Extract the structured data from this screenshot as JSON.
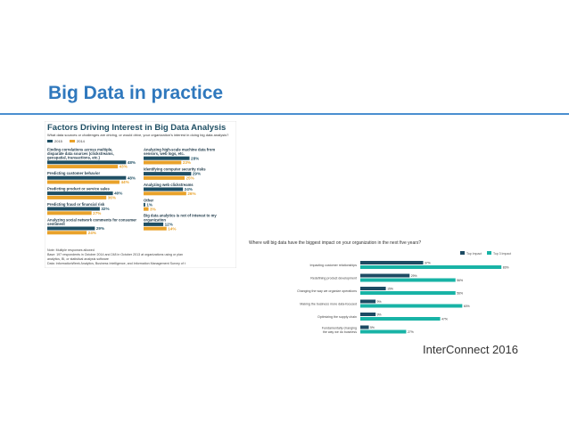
{
  "slide": {
    "title": "Big Data in practice",
    "footer": "InterConnect 2016"
  },
  "colors": {
    "title": "#2f78bd",
    "rule": "#4a8fd0",
    "series2015": "#1f4f64",
    "series2014": "#e9a22a",
    "topImpact": "#1d4b63",
    "top3Impact": "#18b3a6"
  },
  "chart_data": [
    {
      "type": "bar",
      "title": "Factors Driving Interest in Big Data Analysis",
      "subtitle": "What data sources or challenges are driving, or would drive, your organization's interest in doing big data analysis?",
      "series": [
        {
          "name": "2015",
          "values": [
            48,
            48,
            40,
            32,
            29,
            28,
            29,
            24,
            1,
            12
          ]
        },
        {
          "name": "2014",
          "values": [
            43,
            44,
            36,
            27,
            24,
            23,
            25,
            26,
            3,
            14
          ]
        }
      ],
      "categories": [
        "Finding correlations across multiple, disparate data sources (clickstreams, geospatial, transactions, etc.)",
        "Predicting customer behavior",
        "Predicting product or service sales",
        "Predicting fraud or financial risk",
        "Analyzing social network comments for consumer sentiment",
        "Analyzing high-scale machine data from sensors, web logs, etc.",
        "Identifying computer security risks",
        "Analyzing web clickstreams",
        "Other",
        "Big data analytics is not of interest to my organization"
      ],
      "notes": [
        "Note: Multiple responses allowed",
        "Base: 197 respondents in October 2014 and 248 in October 2013 at organizations using or plan",
        "analytics, BI, or statistical analysis software",
        "Data: InformationWeek Analytics, Business Intelligence, and Information Management Survey of t"
      ]
    },
    {
      "type": "bar",
      "title": "Where will big data have the biggest impact on your organization in the next five years?",
      "legend": [
        "Top Impact",
        "Top 3 Impact"
      ],
      "categories": [
        "Impacting customer relationships",
        "Redefining product development",
        "Changing the way we organize operations",
        "Making the business more data-focused",
        "Optimizing the supply chain",
        "Fundamentally changing the way we do business"
      ],
      "series": [
        {
          "name": "Top Impact",
          "values": [
            37,
            29,
            15,
            9,
            9,
            5
          ]
        },
        {
          "name": "Top 3 Impact",
          "values": [
            83,
            56,
            56,
            60,
            47,
            27
          ]
        }
      ],
      "xlim": [
        0,
        85
      ]
    }
  ]
}
